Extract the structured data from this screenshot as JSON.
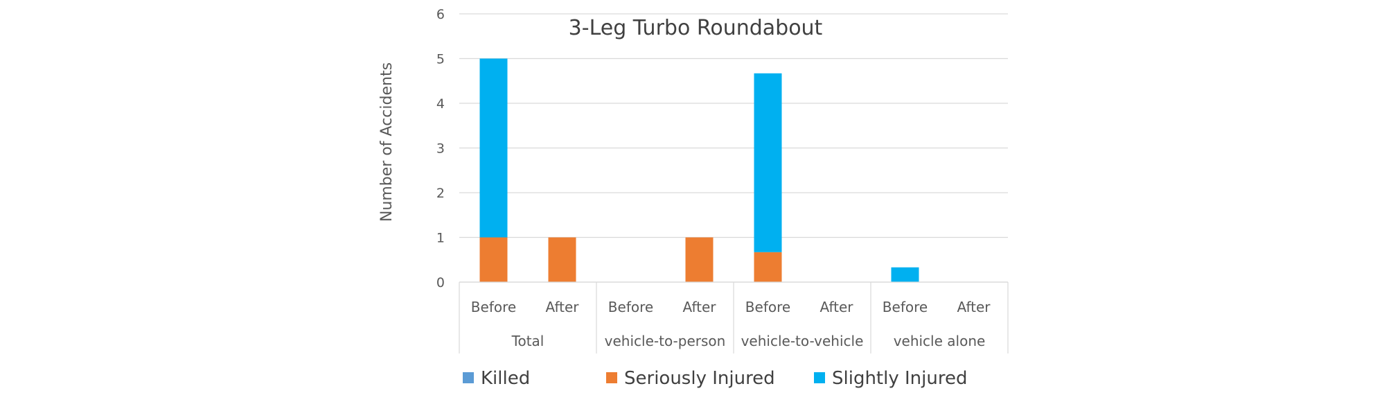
{
  "chart_data": {
    "type": "bar",
    "stacked": true,
    "title": "3-Leg Turbo Roundabout",
    "xlabel": "",
    "ylabel": "Number of Accidents",
    "ylim": [
      0,
      6
    ],
    "yticks": [
      0,
      1,
      2,
      3,
      4,
      5,
      6
    ],
    "grid": true,
    "legend_position": "bottom",
    "groups": [
      "Total",
      "vehicle-to-person",
      "vehicle-to-vehicle",
      "vehicle alone"
    ],
    "categories": [
      "Before",
      "After",
      "Before",
      "After",
      "Before",
      "After",
      "Before",
      "After"
    ],
    "series": [
      {
        "name": "Killed",
        "color": "#5B9BD5",
        "values": [
          0,
          0,
          0,
          0,
          0,
          0,
          0,
          0
        ]
      },
      {
        "name": "Seriously Injured",
        "color": "#ED7D31",
        "values": [
          1,
          1,
          0,
          1,
          0.67,
          0,
          0,
          0
        ]
      },
      {
        "name": "Slightly Injured",
        "color": "#00B0F0",
        "values": [
          4,
          0,
          0,
          0,
          4,
          0,
          0.33,
          0
        ]
      }
    ]
  }
}
